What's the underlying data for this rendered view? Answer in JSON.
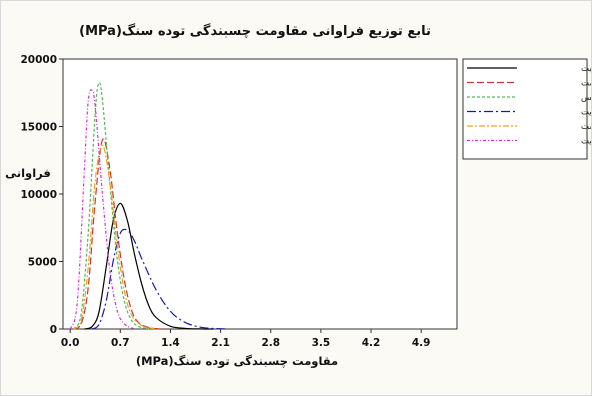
{
  "chart_data": {
    "type": "line",
    "title": "تابع توزیع فراوانی مقاومت چسبندگی توده سنگ(MPa)",
    "xlabel": "مقاومت چسبندگی توده سنگ(MPa)",
    "ylabel": "فراوانی",
    "xlim": [
      -0.1,
      5.4
    ],
    "ylim": [
      0,
      20000
    ],
    "x_ticks": [
      "0.0",
      "0.7",
      "1.4",
      "2.1",
      "2.8",
      "3.5",
      "4.2",
      "4.9"
    ],
    "y_ticks": [
      "0",
      "5000",
      "10000",
      "15000",
      "20000"
    ],
    "grid": false,
    "legend_position": "right",
    "series": [
      {
        "name": "آمفیبولیت",
        "color": "#000000",
        "dash": "",
        "x": [
          0.2,
          0.3,
          0.4,
          0.5,
          0.6,
          0.7,
          0.8,
          0.9,
          1.0,
          1.1,
          1.2,
          1.4,
          1.6,
          1.8,
          2.0
        ],
        "values": [
          0,
          150,
          1200,
          4500,
          8000,
          9300,
          8000,
          5500,
          3300,
          1700,
          850,
          200,
          50,
          10,
          0
        ]
      },
      {
        "name": "کوارتزشیست",
        "color": "#c0392b",
        "dash": "7,3",
        "x": [
          0.05,
          0.15,
          0.25,
          0.35,
          0.45,
          0.55,
          0.65,
          0.75,
          0.85,
          0.95,
          1.1,
          1.3
        ],
        "values": [
          0,
          300,
          3000,
          9500,
          14000,
          12000,
          7500,
          3800,
          1500,
          500,
          100,
          0
        ]
      },
      {
        "name": "گنایس",
        "color": "#5ab55a",
        "dash": "3,2",
        "x": [
          0.05,
          0.15,
          0.25,
          0.35,
          0.4,
          0.45,
          0.55,
          0.65,
          0.75,
          0.85,
          0.95,
          1.1
        ],
        "values": [
          0,
          1000,
          7000,
          16000,
          18200,
          17000,
          11000,
          5500,
          2200,
          700,
          200,
          0
        ]
      },
      {
        "name": "مگنتیت",
        "color": "#1b1b9e",
        "dash": "9,3,2,3",
        "x": [
          0.3,
          0.4,
          0.5,
          0.6,
          0.7,
          0.8,
          0.9,
          1.0,
          1.2,
          1.4,
          1.6,
          1.8,
          2.0,
          2.2
        ],
        "values": [
          0,
          300,
          2000,
          5000,
          7100,
          7300,
          6500,
          5200,
          2900,
          1300,
          500,
          150,
          40,
          0
        ]
      },
      {
        "name": "میکاشیست",
        "color": "#f0a020",
        "dash": "6,2,2,2",
        "x": [
          0.05,
          0.15,
          0.25,
          0.35,
          0.45,
          0.55,
          0.65,
          0.75,
          0.85,
          1.0,
          1.2
        ],
        "values": [
          0,
          500,
          4500,
          11000,
          13600,
          11000,
          6500,
          3000,
          1100,
          250,
          0
        ]
      },
      {
        "name": "هماتیت",
        "color": "#cc33cc",
        "dash": "3,2,1,2",
        "x": [
          0.0,
          0.1,
          0.2,
          0.25,
          0.3,
          0.35,
          0.45,
          0.55,
          0.65,
          0.75,
          0.9
        ],
        "values": [
          0,
          2000,
          12000,
          16800,
          17700,
          16500,
          10000,
          4500,
          1500,
          400,
          0
        ]
      }
    ]
  }
}
